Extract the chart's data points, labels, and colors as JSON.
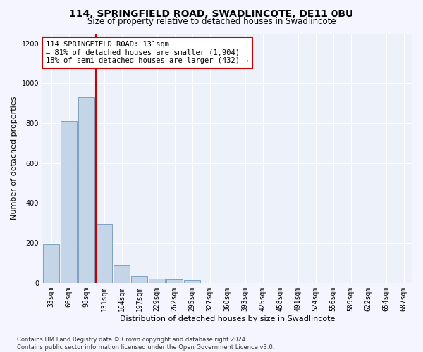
{
  "title1": "114, SPRINGFIELD ROAD, SWADLINCOTE, DE11 0BU",
  "title2": "Size of property relative to detached houses in Swadlincote",
  "xlabel": "Distribution of detached houses by size in Swadlincote",
  "ylabel": "Number of detached properties",
  "bin_labels": [
    "33sqm",
    "66sqm",
    "98sqm",
    "131sqm",
    "164sqm",
    "197sqm",
    "229sqm",
    "262sqm",
    "295sqm",
    "327sqm",
    "360sqm",
    "393sqm",
    "425sqm",
    "458sqm",
    "491sqm",
    "524sqm",
    "556sqm",
    "589sqm",
    "622sqm",
    "654sqm",
    "687sqm"
  ],
  "bar_values": [
    193,
    810,
    930,
    295,
    87,
    35,
    20,
    18,
    12,
    0,
    0,
    0,
    0,
    0,
    0,
    0,
    0,
    0,
    0,
    0,
    0
  ],
  "bar_color": "#c5d5e8",
  "bar_edge_color": "#7096b8",
  "background_color": "#edf1f9",
  "grid_color": "#ffffff",
  "vline_color": "#cc0000",
  "annotation_text": "114 SPRINGFIELD ROAD: 131sqm\n← 81% of detached houses are smaller (1,904)\n18% of semi-detached houses are larger (432) →",
  "annotation_box_color": "#ffffff",
  "annotation_box_edge": "#cc0000",
  "ylim": [
    0,
    1250
  ],
  "yticks": [
    0,
    200,
    400,
    600,
    800,
    1000,
    1200
  ],
  "fig_bg": "#f5f5ff",
  "footnote": "Contains HM Land Registry data © Crown copyright and database right 2024.\nContains public sector information licensed under the Open Government Licence v3.0.",
  "title1_fontsize": 10,
  "title2_fontsize": 8.5,
  "xlabel_fontsize": 8,
  "ylabel_fontsize": 8,
  "tick_fontsize": 7,
  "annot_fontsize": 7.5,
  "footnote_fontsize": 6
}
